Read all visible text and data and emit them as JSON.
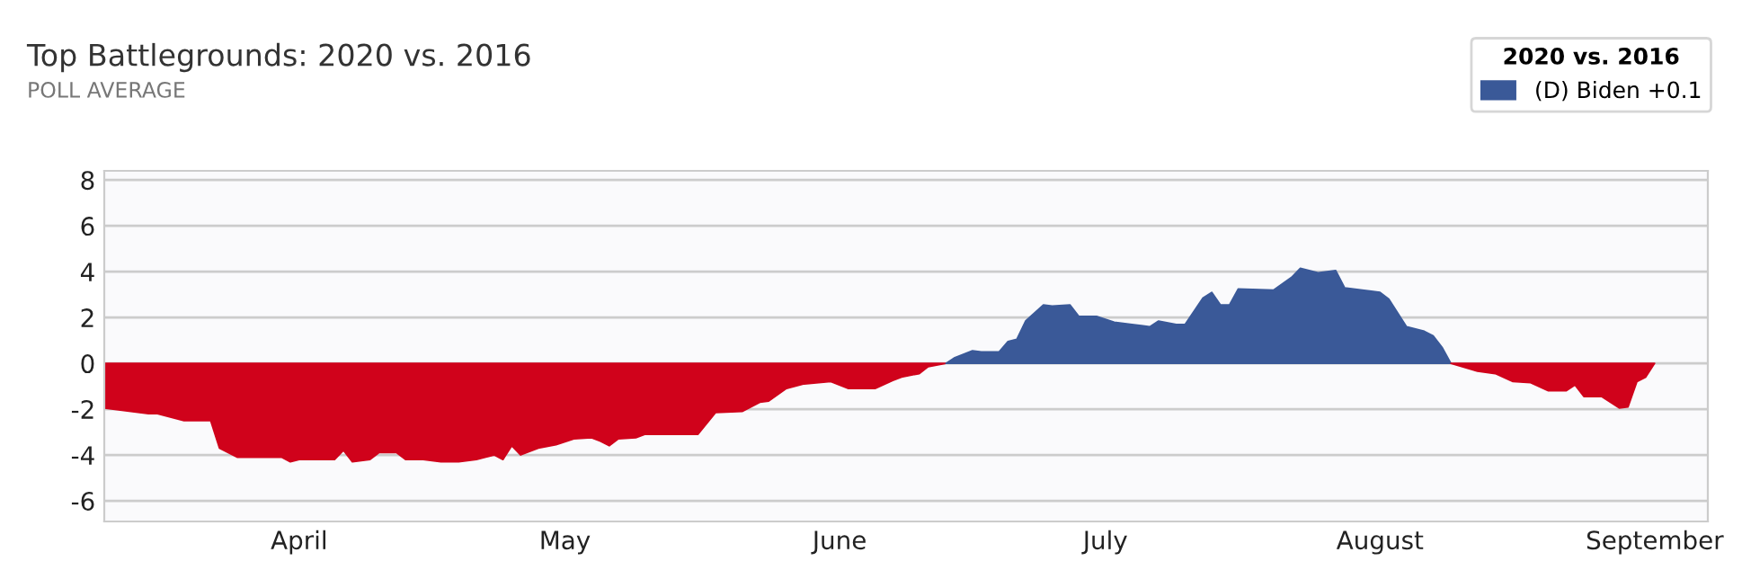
{
  "chart_data": {
    "type": "area",
    "title": "Top Battlegrounds: 2020 vs. 2016",
    "subtitle": "POLL AVERAGE",
    "legend_title": "2020 vs. 2016",
    "legend": "top right",
    "grid": "y",
    "xlim": [
      "2020-03-10",
      "2020-09-07"
    ],
    "ylim": [
      -6.9,
      8.4
    ],
    "yticks": [
      -6,
      -4,
      -2,
      0,
      2,
      4,
      6,
      8
    ],
    "xticks": [
      {
        "value": "2020-04-01",
        "label": "April"
      },
      {
        "value": "2020-05-01",
        "label": "May"
      },
      {
        "value": "2020-06-01",
        "label": "June"
      },
      {
        "value": "2020-07-01",
        "label": "July"
      },
      {
        "value": "2020-08-01",
        "label": "August"
      },
      {
        "value": "2020-09-01",
        "label": "September"
      }
    ],
    "series": [
      {
        "color": "#d0021b",
        "x": [
          "2020-03-10",
          "2020-03-13",
          "2020-03-15",
          "2020-03-16",
          "2020-03-19",
          "2020-03-22",
          "2020-03-23",
          "2020-03-25",
          "2020-03-27",
          "2020-03-30",
          "2020-03-31",
          "2020-04-01",
          "2020-04-03",
          "2020-04-05",
          "2020-04-06",
          "2020-04-07",
          "2020-04-09",
          "2020-04-10",
          "2020-04-12",
          "2020-04-13",
          "2020-04-15",
          "2020-04-17",
          "2020-04-19",
          "2020-04-21",
          "2020-04-23",
          "2020-04-24",
          "2020-04-25",
          "2020-04-26",
          "2020-04-28",
          "2020-04-30",
          "2020-05-02",
          "2020-05-04",
          "2020-05-05",
          "2020-05-06",
          "2020-05-07",
          "2020-05-09",
          "2020-05-10",
          "2020-05-16",
          "2020-05-18",
          "2020-05-21",
          "2020-05-23",
          "2020-05-24",
          "2020-05-26",
          "2020-05-28",
          "2020-05-31",
          "2020-06-02",
          "2020-06-05",
          "2020-06-07",
          "2020-06-08",
          "2020-06-10",
          "2020-06-11",
          "2020-06-13"
        ],
        "values": [
          -1.95,
          -2.1,
          -2.2,
          -2.2,
          -2.5,
          -2.5,
          -3.7,
          -4.1,
          -4.1,
          -4.1,
          -4.3,
          -4.2,
          -4.2,
          -4.2,
          -3.8,
          -4.3,
          -4.2,
          -3.9,
          -3.9,
          -4.2,
          -4.2,
          -4.3,
          -4.3,
          -4.2,
          -4.0,
          -4.2,
          -3.6,
          -4.0,
          -3.7,
          -3.55,
          -3.3,
          -3.25,
          -3.4,
          -3.6,
          -3.3,
          -3.25,
          -3.1,
          -3.1,
          -2.15,
          -2.1,
          -1.7,
          -1.65,
          -1.1,
          -0.9,
          -0.8,
          -1.1,
          -1.1,
          -0.75,
          -0.6,
          -0.45,
          -0.15,
          0
        ]
      },
      {
        "name": "(D) Biden +0.1",
        "color": "#3a5998",
        "x": [
          "2020-06-13",
          "2020-06-14",
          "2020-06-16",
          "2020-06-17",
          "2020-06-19",
          "2020-06-20",
          "2020-06-21",
          "2020-06-22",
          "2020-06-24",
          "2020-06-25",
          "2020-06-27",
          "2020-06-28",
          "2020-06-30",
          "2020-07-02",
          "2020-07-04",
          "2020-07-06",
          "2020-07-07",
          "2020-07-09",
          "2020-07-10",
          "2020-07-12",
          "2020-07-13",
          "2020-07-14",
          "2020-07-15",
          "2020-07-16",
          "2020-07-20",
          "2020-07-22",
          "2020-07-23",
          "2020-07-25",
          "2020-07-27",
          "2020-07-28",
          "2020-07-30",
          "2020-08-01",
          "2020-08-02",
          "2020-08-04",
          "2020-08-06",
          "2020-08-07",
          "2020-08-08",
          "2020-08-09"
        ],
        "values": [
          0,
          0.25,
          0.55,
          0.5,
          0.5,
          0.95,
          1.05,
          1.85,
          2.55,
          2.5,
          2.55,
          2.05,
          2.05,
          1.8,
          1.7,
          1.6,
          1.85,
          1.7,
          1.7,
          2.85,
          3.1,
          2.55,
          2.55,
          3.25,
          3.2,
          3.75,
          4.15,
          3.95,
          4.05,
          3.3,
          3.2,
          3.1,
          2.8,
          1.6,
          1.4,
          1.2,
          0.7,
          0
        ]
      },
      {
        "color": "#d0021b",
        "x": [
          "2020-08-09",
          "2020-08-12",
          "2020-08-14",
          "2020-08-16",
          "2020-08-18",
          "2020-08-20",
          "2020-08-22",
          "2020-08-23",
          "2020-08-24",
          "2020-08-26",
          "2020-08-28",
          "2020-08-29",
          "2020-08-30",
          "2020-08-31",
          "2020-09-01"
        ],
        "values": [
          0,
          -0.35,
          -0.45,
          -0.8,
          -0.85,
          -1.2,
          -1.2,
          -0.95,
          -1.45,
          -1.45,
          -1.95,
          -1.9,
          -0.8,
          -0.6,
          0
        ]
      }
    ]
  }
}
